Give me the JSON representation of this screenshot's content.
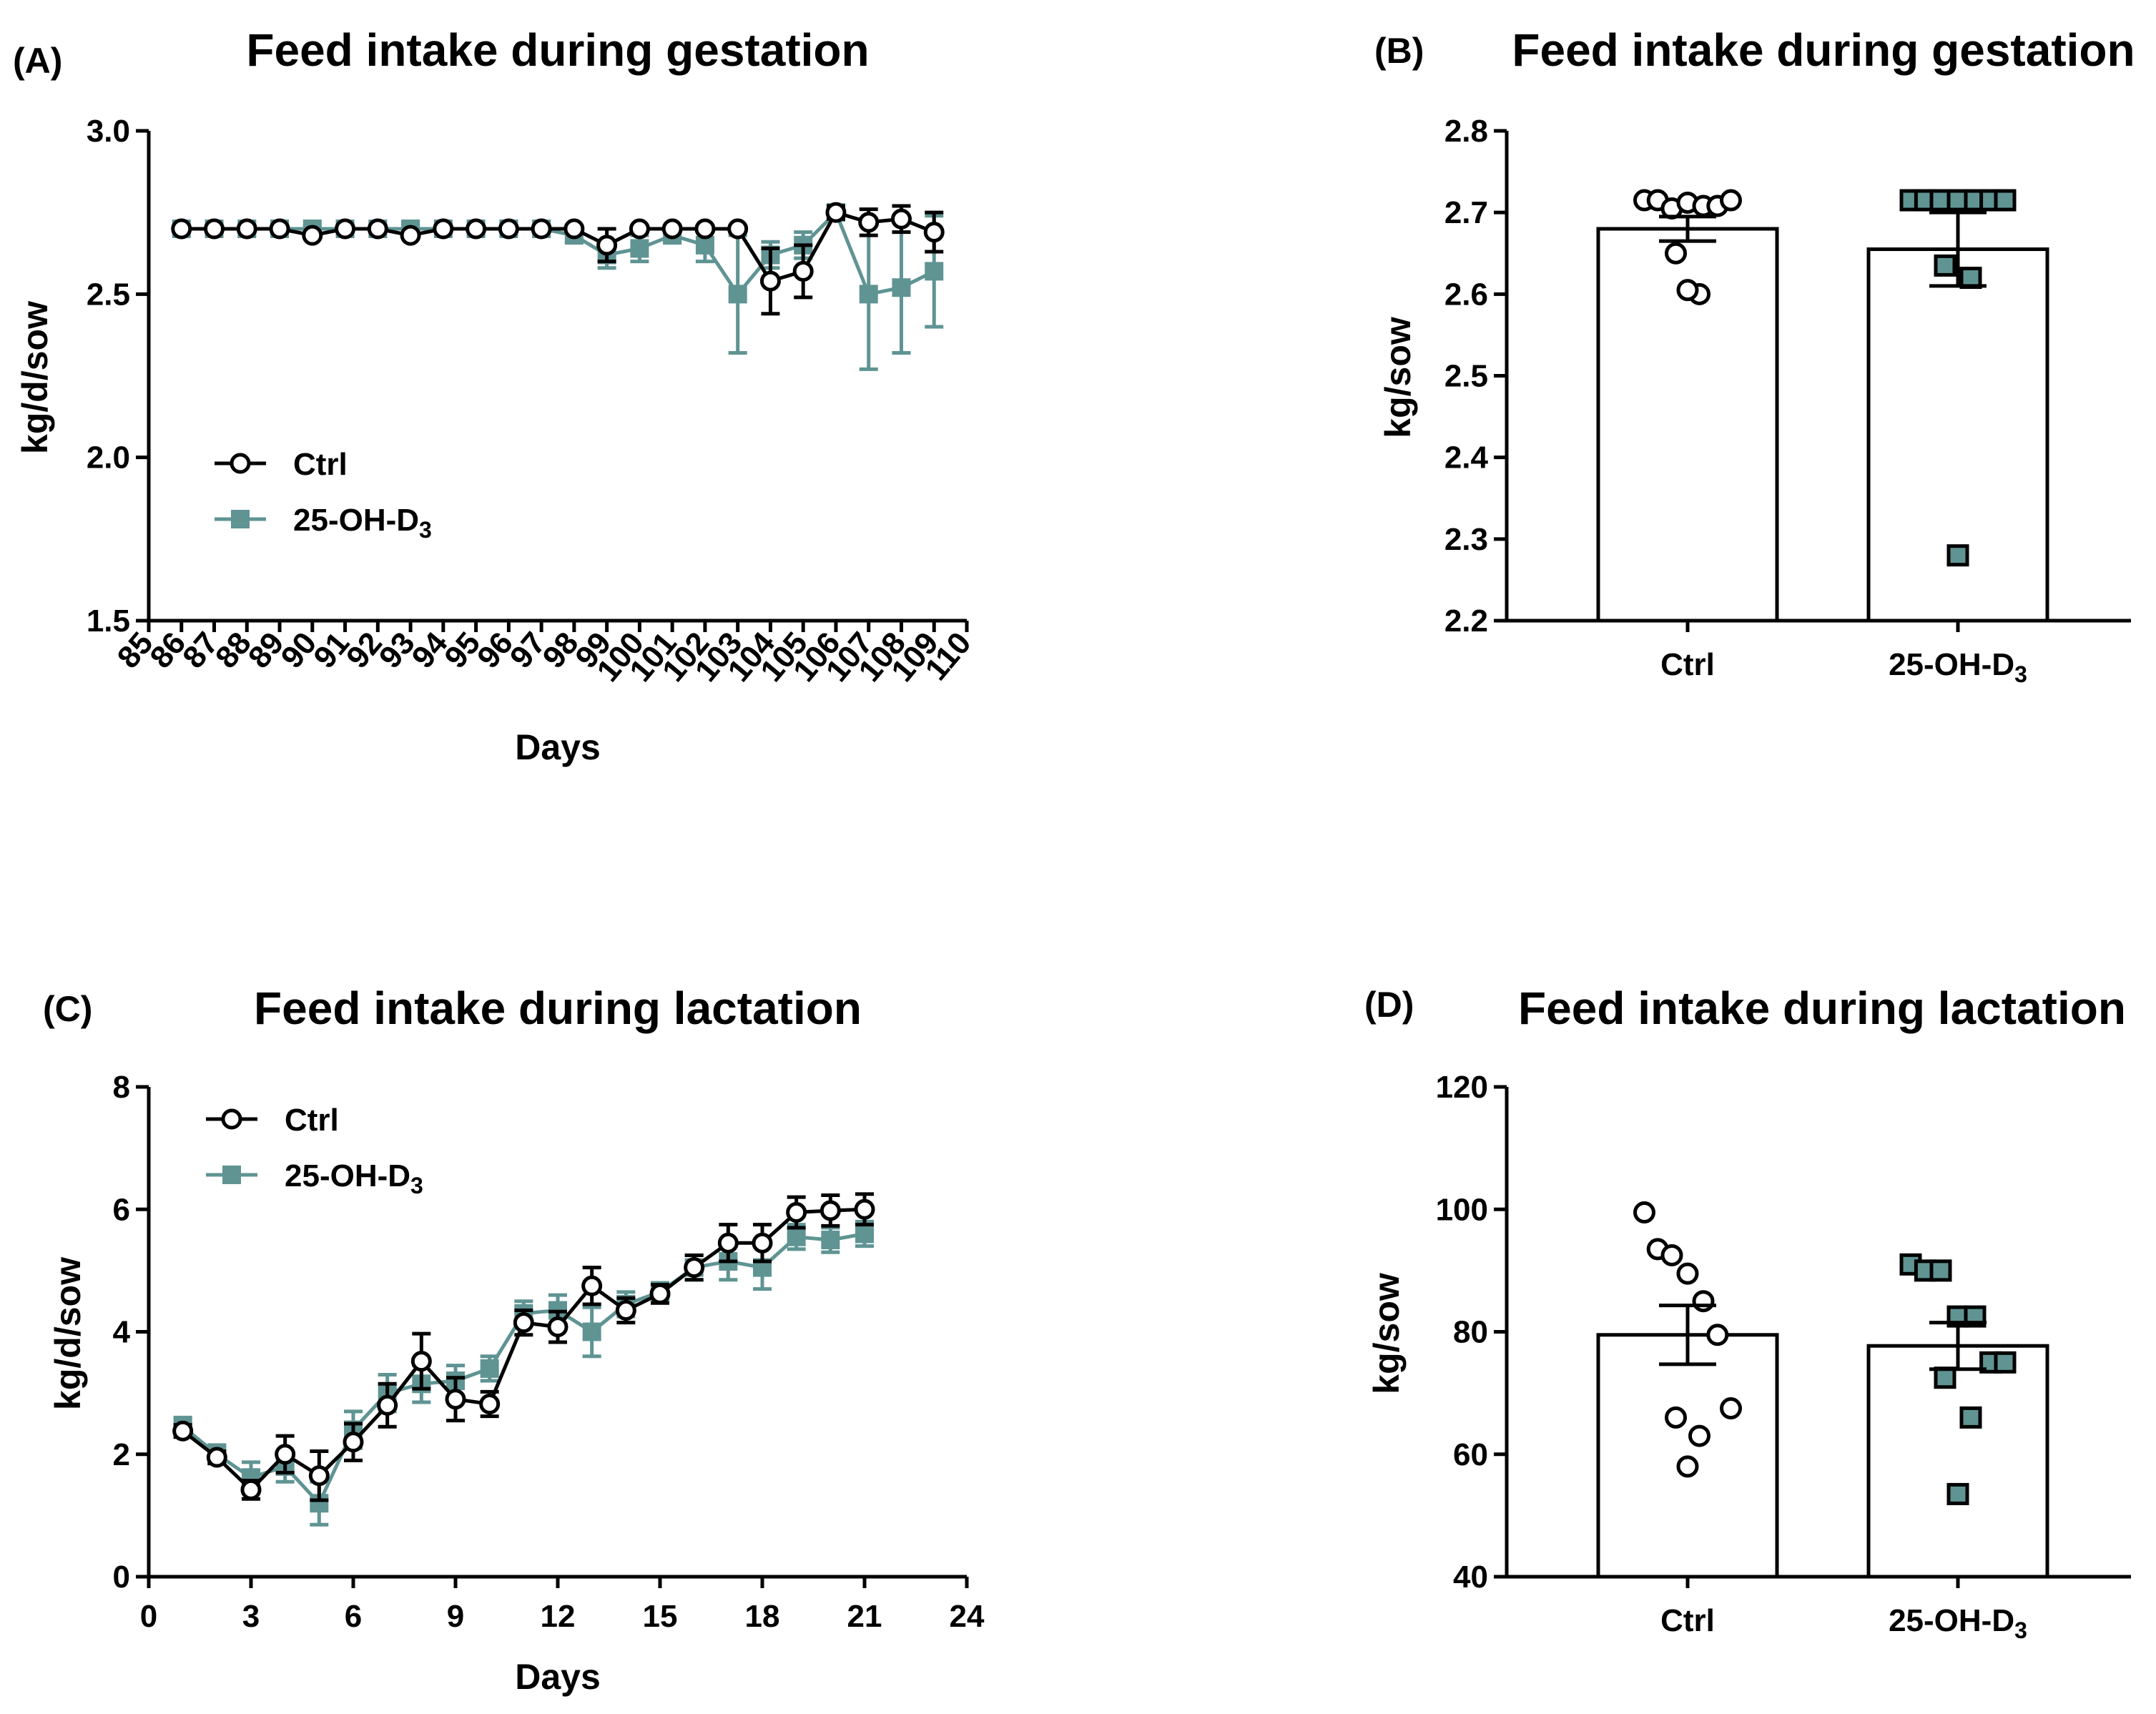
{
  "colors": {
    "ctrl": "#000000",
    "treatment": "#5f9493",
    "background": "#ffffff"
  },
  "chart_data": [
    {
      "id": "A",
      "panel_label": "(A)",
      "type": "line",
      "title": "Feed intake during gestation",
      "xlabel": "Days",
      "ylabel": "kg/d/sow",
      "xlim": [
        85,
        110
      ],
      "ylim": [
        1.5,
        3.0
      ],
      "yticks": [
        1.5,
        2.0,
        2.5,
        3.0
      ],
      "ytick_labels": [
        "1.5",
        "2.0",
        "2.5",
        "3.0"
      ],
      "xticks": [
        85,
        86,
        87,
        88,
        89,
        90,
        91,
        92,
        93,
        94,
        95,
        96,
        97,
        98,
        99,
        100,
        101,
        102,
        103,
        104,
        105,
        106,
        107,
        108,
        109,
        110
      ],
      "xtick_labels": [
        "85",
        "86",
        "87",
        "88",
        "89",
        "90",
        "91",
        "92",
        "93",
        "94",
        "95",
        "96",
        "97",
        "98",
        "99",
        "100",
        "101",
        "102",
        "103",
        "104",
        "105",
        "106",
        "107",
        "108",
        "109",
        "110"
      ],
      "legend_position": "lower-left",
      "series": [
        {
          "name": "Ctrl",
          "legend_label": "Ctrl",
          "marker": "open-circle",
          "x": [
            86,
            87,
            88,
            89,
            90,
            91,
            92,
            93,
            94,
            95,
            96,
            97,
            98,
            99,
            100,
            101,
            102,
            103,
            104,
            105,
            106,
            107,
            108,
            109
          ],
          "values": [
            2.7,
            2.7,
            2.7,
            2.7,
            2.68,
            2.7,
            2.7,
            2.68,
            2.7,
            2.7,
            2.7,
            2.7,
            2.7,
            2.65,
            2.7,
            2.7,
            2.7,
            2.7,
            2.54,
            2.57,
            2.75,
            2.72,
            2.73,
            2.69
          ],
          "error": [
            0,
            0,
            0,
            0,
            0,
            0,
            0,
            0,
            0,
            0,
            0,
            0,
            0,
            0.05,
            0,
            0,
            0,
            0,
            0.1,
            0.08,
            0.02,
            0.04,
            0.04,
            0.06
          ]
        },
        {
          "name": "25-OH-D3",
          "legend_label": "25-OH-D",
          "legend_sub": "3",
          "marker": "filled-square",
          "x": [
            86,
            87,
            88,
            89,
            90,
            91,
            92,
            93,
            94,
            95,
            96,
            97,
            98,
            99,
            100,
            101,
            102,
            103,
            104,
            105,
            106,
            107,
            108,
            109
          ],
          "values": [
            2.7,
            2.7,
            2.7,
            2.7,
            2.7,
            2.7,
            2.7,
            2.7,
            2.7,
            2.7,
            2.7,
            2.7,
            2.68,
            2.62,
            2.64,
            2.68,
            2.65,
            2.5,
            2.62,
            2.65,
            2.75,
            2.5,
            2.52,
            2.57
          ],
          "error": [
            0,
            0,
            0,
            0,
            0.01,
            0,
            0,
            0.01,
            0,
            0,
            0,
            0,
            0.02,
            0.04,
            0.04,
            0.02,
            0.05,
            0.18,
            0.04,
            0.04,
            0.02,
            0.23,
            0.2,
            0.17
          ]
        }
      ]
    },
    {
      "id": "B",
      "panel_label": "(B)",
      "type": "bar",
      "title": "Feed intake during gestation",
      "xlabel": "",
      "ylabel": "kg/sow",
      "ylim": [
        2.2,
        2.8
      ],
      "yticks": [
        2.2,
        2.3,
        2.4,
        2.5,
        2.6,
        2.7,
        2.8
      ],
      "ytick_labels": [
        "2.2",
        "2.3",
        "2.4",
        "2.5",
        "2.6",
        "2.7",
        "2.8"
      ],
      "categories": [
        "Ctrl",
        "25-OH-D3"
      ],
      "category_labels": [
        {
          "main": "Ctrl",
          "sub": ""
        },
        {
          "main": "25-OH-D",
          "sub": "3"
        }
      ],
      "values": [
        2.68,
        2.655
      ],
      "sem": [
        0.015,
        0.045
      ],
      "points": [
        [
          2.715,
          2.715,
          2.705,
          2.712,
          2.708,
          2.708,
          2.715,
          2.65,
          2.6,
          2.605
        ],
        [
          2.715,
          2.715,
          2.715,
          2.715,
          2.715,
          2.715,
          2.715,
          2.635,
          2.62,
          2.28
        ]
      ]
    },
    {
      "id": "C",
      "panel_label": "(C)",
      "type": "line",
      "title": "Feed intake during lactation",
      "xlabel": "Days",
      "ylabel": "kg/d/sow",
      "xlim": [
        0,
        24
      ],
      "ylim": [
        0,
        8
      ],
      "yticks": [
        0,
        2,
        4,
        6,
        8
      ],
      "ytick_labels": [
        "0",
        "2",
        "4",
        "6",
        "8"
      ],
      "xticks": [
        0,
        3,
        6,
        9,
        12,
        15,
        18,
        21,
        24
      ],
      "xtick_labels": [
        "0",
        "3",
        "6",
        "9",
        "12",
        "15",
        "18",
        "21",
        "24"
      ],
      "legend_position": "top-left",
      "series": [
        {
          "name": "Ctrl",
          "legend_label": "Ctrl",
          "marker": "open-circle",
          "x": [
            1,
            2,
            3,
            4,
            5,
            6,
            7,
            8,
            9,
            10,
            11,
            12,
            13,
            14,
            15,
            16,
            17,
            18,
            19,
            20,
            21
          ],
          "values": [
            2.38,
            1.95,
            1.42,
            2.0,
            1.65,
            2.2,
            2.8,
            3.52,
            2.9,
            2.82,
            4.15,
            4.08,
            4.75,
            4.35,
            4.62,
            5.05,
            5.45,
            5.45,
            5.95,
            5.98,
            6.0
          ],
          "error": [
            0.1,
            0.1,
            0.15,
            0.3,
            0.4,
            0.3,
            0.35,
            0.45,
            0.35,
            0.2,
            0.2,
            0.25,
            0.3,
            0.2,
            0.15,
            0.2,
            0.3,
            0.3,
            0.25,
            0.25,
            0.25
          ]
        },
        {
          "name": "25-OH-D3",
          "legend_label": "25-OH-D",
          "legend_sub": "3",
          "marker": "filled-square",
          "x": [
            1,
            2,
            3,
            4,
            5,
            6,
            7,
            8,
            9,
            10,
            11,
            12,
            13,
            14,
            15,
            16,
            17,
            18,
            19,
            20,
            21
          ],
          "values": [
            2.45,
            2.0,
            1.62,
            1.8,
            1.2,
            2.4,
            3.0,
            3.15,
            3.2,
            3.4,
            4.3,
            4.35,
            4.0,
            4.45,
            4.65,
            5.05,
            5.15,
            5.05,
            5.55,
            5.5,
            5.6
          ],
          "error": [
            0.15,
            0.15,
            0.25,
            0.25,
            0.35,
            0.3,
            0.3,
            0.3,
            0.25,
            0.2,
            0.2,
            0.25,
            0.4,
            0.2,
            0.15,
            0.2,
            0.3,
            0.35,
            0.2,
            0.2,
            0.2
          ]
        }
      ]
    },
    {
      "id": "D",
      "panel_label": "(D)",
      "type": "bar",
      "title": "Feed intake during lactation",
      "xlabel": "",
      "ylabel": "kg/sow",
      "ylim": [
        40,
        120
      ],
      "yticks": [
        40,
        60,
        80,
        100,
        120
      ],
      "ytick_labels": [
        "40",
        "60",
        "80",
        "100",
        "120"
      ],
      "categories": [
        "Ctrl",
        "25-OH-D3"
      ],
      "category_labels": [
        {
          "main": "Ctrl",
          "sub": ""
        },
        {
          "main": "25-OH-D",
          "sub": "3"
        }
      ],
      "values": [
        79.5,
        77.7
      ],
      "sem": [
        4.8,
        3.8
      ],
      "points": [
        [
          99.5,
          93.5,
          92.5,
          89.5,
          85.0,
          79.5,
          67.5,
          66.0,
          63.0,
          58.0
        ],
        [
          91.0,
          90.0,
          90.0,
          82.5,
          82.5,
          75.0,
          75.0,
          72.5,
          66.0,
          53.5
        ]
      ]
    }
  ]
}
